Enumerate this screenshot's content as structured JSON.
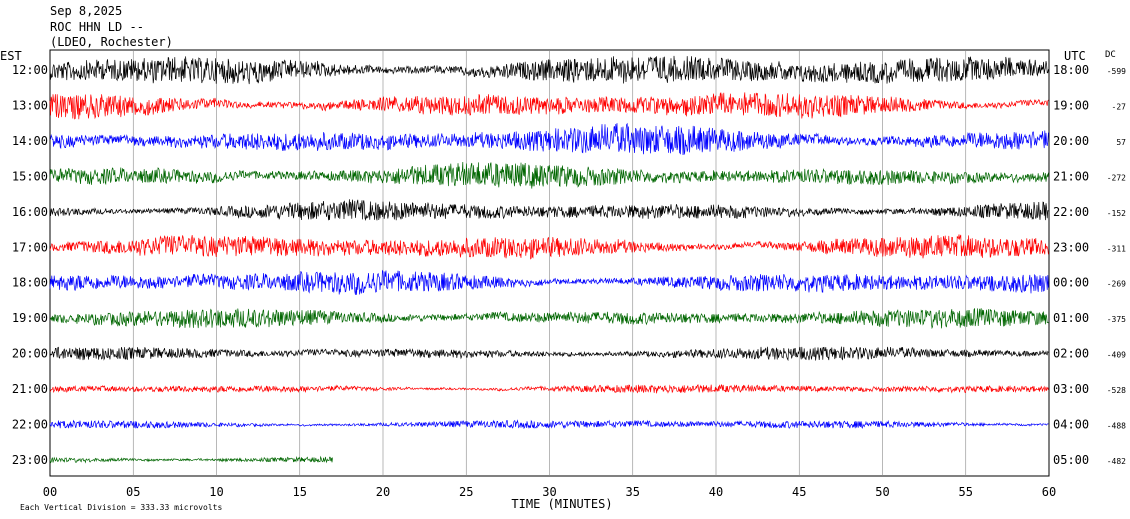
{
  "header": {
    "date": "Sep 8,2025",
    "station": "ROC HHN LD --",
    "network": "(LDEO, Rochester)"
  },
  "left_axis_title": "EST",
  "right_axis_title": "UTC",
  "dc_title": "DC",
  "footnote": "Each Vertical Division = 333.33 microvolts",
  "chart_data": {
    "type": "line",
    "title": "",
    "xlabel": "TIME (MINUTES)",
    "xlim": [
      0,
      60
    ],
    "x_ticks": [
      "00",
      "05",
      "10",
      "15",
      "20",
      "25",
      "30",
      "35",
      "40",
      "45",
      "50",
      "55",
      "60"
    ],
    "grid": "vertical lines every 5 minutes",
    "rows": [
      {
        "est": "12:00",
        "utc": "18:00",
        "dc": "-599",
        "color": "#000000",
        "activity": 1.05,
        "end_minute": 60
      },
      {
        "est": "13:00",
        "utc": "19:00",
        "dc": "-27",
        "color": "#ff0000",
        "activity": 0.9,
        "end_minute": 60
      },
      {
        "est": "14:00",
        "utc": "20:00",
        "dc": "57",
        "color": "#0000ff",
        "activity": 1.0,
        "end_minute": 60
      },
      {
        "est": "15:00",
        "utc": "21:00",
        "dc": "-272",
        "color": "#006600",
        "activity": 0.85,
        "end_minute": 60
      },
      {
        "est": "16:00",
        "utc": "22:00",
        "dc": "-152",
        "color": "#000000",
        "activity": 0.7,
        "end_minute": 60
      },
      {
        "est": "17:00",
        "utc": "23:00",
        "dc": "-311",
        "color": "#ff0000",
        "activity": 0.85,
        "end_minute": 60
      },
      {
        "est": "18:00",
        "utc": "00:00",
        "dc": "-269",
        "color": "#0000ff",
        "activity": 0.8,
        "end_minute": 60
      },
      {
        "est": "19:00",
        "utc": "01:00",
        "dc": "-375",
        "color": "#006600",
        "activity": 0.65,
        "end_minute": 60
      },
      {
        "est": "20:00",
        "utc": "02:00",
        "dc": "-409",
        "color": "#000000",
        "activity": 0.45,
        "end_minute": 60
      },
      {
        "est": "21:00",
        "utc": "03:00",
        "dc": "-528",
        "color": "#ff0000",
        "activity": 0.3,
        "end_minute": 60
      },
      {
        "est": "22:00",
        "utc": "04:00",
        "dc": "-488",
        "color": "#0000ff",
        "activity": 0.3,
        "end_minute": 60
      },
      {
        "est": "23:00",
        "utc": "05:00",
        "dc": "-482",
        "color": "#006600",
        "activity": 0.28,
        "end_minute": 17
      }
    ]
  }
}
